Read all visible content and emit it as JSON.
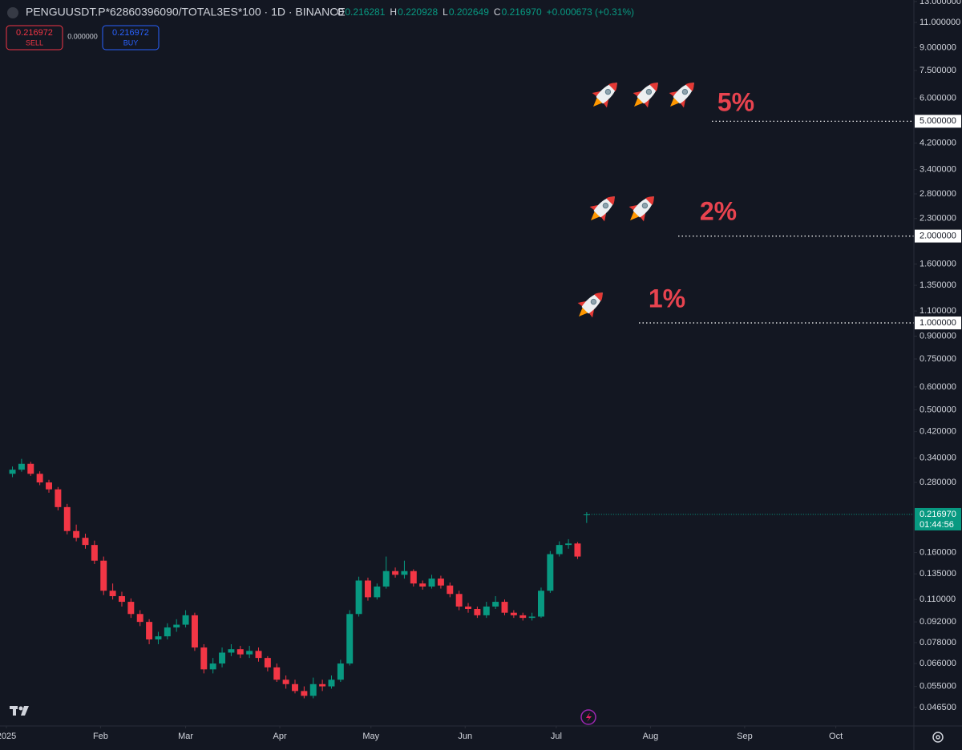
{
  "header": {
    "symbol": "PENGUUSDT.P*62860396090/TOTAL3ES*100 · 1D · BINANCE",
    "open_label": "O",
    "open": "0.216281",
    "high_label": "H",
    "high": "0.220928",
    "low_label": "L",
    "low": "0.202649",
    "close_label": "C",
    "close": "0.216970",
    "change": "+0.000673 (+0.31%)",
    "sell_price": "0.216972",
    "sell_label": "SELL",
    "spread": "0.000000",
    "buy_price": "0.216972",
    "buy_label": "BUY"
  },
  "chart_data": {
    "type": "candlestick",
    "log_scale": true,
    "grid": false,
    "up_color": "#089981",
    "down_color": "#f23645",
    "xlim": [
      -2.1,
      298.7
    ],
    "xticks": [
      {
        "value": 0,
        "label": "2025"
      },
      {
        "value": 31,
        "label": "Feb"
      },
      {
        "value": 59,
        "label": "Mar"
      },
      {
        "value": 90,
        "label": "Apr"
      },
      {
        "value": 120,
        "label": "May"
      },
      {
        "value": 151,
        "label": "Jun"
      },
      {
        "value": 181,
        "label": "Jul"
      },
      {
        "value": 212,
        "label": "Aug"
      },
      {
        "value": 243,
        "label": "Sep"
      },
      {
        "value": 273,
        "label": "Oct"
      }
    ],
    "ylim": [
      0.0401,
      13.16
    ],
    "yticks": [
      {
        "value": 13,
        "label": "13.000000"
      },
      {
        "value": 11,
        "label": "11.000000"
      },
      {
        "value": 9,
        "label": "9.000000"
      },
      {
        "value": 7.5,
        "label": "7.500000"
      },
      {
        "value": 6,
        "label": "6.000000"
      },
      {
        "value": 4.2,
        "label": "4.200000"
      },
      {
        "value": 3.4,
        "label": "3.400000"
      },
      {
        "value": 2.8,
        "label": "2.800000"
      },
      {
        "value": 2.3,
        "label": "2.300000"
      },
      {
        "value": 1.6,
        "label": "1.600000"
      },
      {
        "value": 1.35,
        "label": "1.350000"
      },
      {
        "value": 1.1,
        "label": "1.100000"
      },
      {
        "value": 0.9,
        "label": "0.900000"
      },
      {
        "value": 0.75,
        "label": "0.750000"
      },
      {
        "value": 0.6,
        "label": "0.600000"
      },
      {
        "value": 0.5,
        "label": "0.500000"
      },
      {
        "value": 0.42,
        "label": "0.420000"
      },
      {
        "value": 0.34,
        "label": "0.340000"
      },
      {
        "value": 0.28,
        "label": "0.280000"
      },
      {
        "value": 0.16,
        "label": "0.160000"
      },
      {
        "value": 0.135,
        "label": "0.135000"
      },
      {
        "value": 0.11,
        "label": "0.110000"
      },
      {
        "value": 0.092,
        "label": "0.092000"
      },
      {
        "value": 0.078,
        "label": "0.078000"
      },
      {
        "value": 0.066,
        "label": "0.066000"
      },
      {
        "value": 0.055,
        "label": "0.055000"
      },
      {
        "value": 0.0465,
        "label": "0.046500"
      }
    ],
    "levels": [
      {
        "value": 1,
        "label": "1.000000",
        "annotation": "1%"
      },
      {
        "value": 2,
        "label": "2.000000",
        "annotation": "2%"
      },
      {
        "value": 5,
        "label": "5.000000",
        "annotation": "5%"
      }
    ],
    "last_price": {
      "value": 0.21697,
      "label": "0.216970",
      "countdown": "01:44:56"
    },
    "x": [
      2,
      5,
      8,
      11,
      14,
      17,
      20,
      23,
      26,
      29,
      32,
      35,
      38,
      41,
      44,
      47,
      50,
      53,
      56,
      59,
      62,
      65,
      68,
      71,
      74,
      77,
      80,
      83,
      86,
      89,
      92,
      95,
      98,
      101,
      104,
      107,
      110,
      113,
      116,
      119,
      122,
      125,
      128,
      131,
      134,
      137,
      140,
      143,
      146,
      149,
      152,
      155,
      158,
      161,
      164,
      167,
      170,
      173,
      176,
      179,
      182,
      185,
      188,
      191
    ],
    "open": [
      0.3,
      0.31,
      0.325,
      0.3,
      0.28,
      0.265,
      0.23,
      0.19,
      0.18,
      0.17,
      0.15,
      0.118,
      0.113,
      0.108,
      0.098,
      0.092,
      0.08,
      0.082,
      0.088,
      0.09,
      0.097,
      0.075,
      0.063,
      0.066,
      0.072,
      0.074,
      0.071,
      0.073,
      0.069,
      0.064,
      0.058,
      0.056,
      0.053,
      0.051,
      0.056,
      0.055,
      0.058,
      0.066,
      0.098,
      0.128,
      0.112,
      0.122,
      0.138,
      0.134,
      0.138,
      0.125,
      0.122,
      0.13,
      0.123,
      0.115,
      0.104,
      0.102,
      0.097,
      0.104,
      0.108,
      0.099,
      0.097,
      0.095,
      0.096,
      0.118,
      0.158,
      0.17,
      0.172,
      0.216281
    ],
    "high": [
      0.318,
      0.338,
      0.33,
      0.306,
      0.286,
      0.27,
      0.236,
      0.2,
      0.186,
      0.176,
      0.155,
      0.125,
      0.117,
      0.111,
      0.101,
      0.094,
      0.085,
      0.091,
      0.094,
      0.101,
      0.099,
      0.077,
      0.069,
      0.075,
      0.077,
      0.076,
      0.076,
      0.075,
      0.07,
      0.066,
      0.06,
      0.058,
      0.055,
      0.059,
      0.058,
      0.06,
      0.068,
      0.101,
      0.132,
      0.131,
      0.125,
      0.155,
      0.142,
      0.15,
      0.14,
      0.128,
      0.134,
      0.133,
      0.126,
      0.118,
      0.107,
      0.104,
      0.108,
      0.113,
      0.11,
      0.101,
      0.099,
      0.099,
      0.121,
      0.162,
      0.175,
      0.178,
      0.174,
      0.220928
    ],
    "low": [
      0.292,
      0.305,
      0.295,
      0.274,
      0.258,
      0.224,
      0.185,
      0.175,
      0.165,
      0.146,
      0.114,
      0.11,
      0.104,
      0.095,
      0.089,
      0.077,
      0.077,
      0.08,
      0.085,
      0.088,
      0.073,
      0.061,
      0.061,
      0.064,
      0.07,
      0.069,
      0.069,
      0.067,
      0.062,
      0.057,
      0.054,
      0.052,
      0.05,
      0.05,
      0.053,
      0.054,
      0.057,
      0.065,
      0.096,
      0.109,
      0.11,
      0.12,
      0.131,
      0.13,
      0.122,
      0.119,
      0.12,
      0.12,
      0.112,
      0.101,
      0.099,
      0.095,
      0.095,
      0.102,
      0.097,
      0.095,
      0.093,
      0.093,
      0.095,
      0.116,
      0.155,
      0.165,
      0.152,
      0.202649
    ],
    "close": [
      0.31,
      0.325,
      0.3,
      0.28,
      0.265,
      0.23,
      0.19,
      0.18,
      0.17,
      0.15,
      0.118,
      0.113,
      0.108,
      0.098,
      0.092,
      0.08,
      0.082,
      0.088,
      0.09,
      0.097,
      0.075,
      0.063,
      0.066,
      0.072,
      0.074,
      0.071,
      0.073,
      0.069,
      0.064,
      0.058,
      0.056,
      0.053,
      0.051,
      0.056,
      0.055,
      0.058,
      0.066,
      0.098,
      0.128,
      0.112,
      0.122,
      0.138,
      0.134,
      0.138,
      0.125,
      0.122,
      0.13,
      0.123,
      0.115,
      0.104,
      0.102,
      0.097,
      0.104,
      0.108,
      0.099,
      0.097,
      0.095,
      0.096,
      0.118,
      0.158,
      0.17,
      0.172,
      0.155,
      0.21697
    ]
  }
}
